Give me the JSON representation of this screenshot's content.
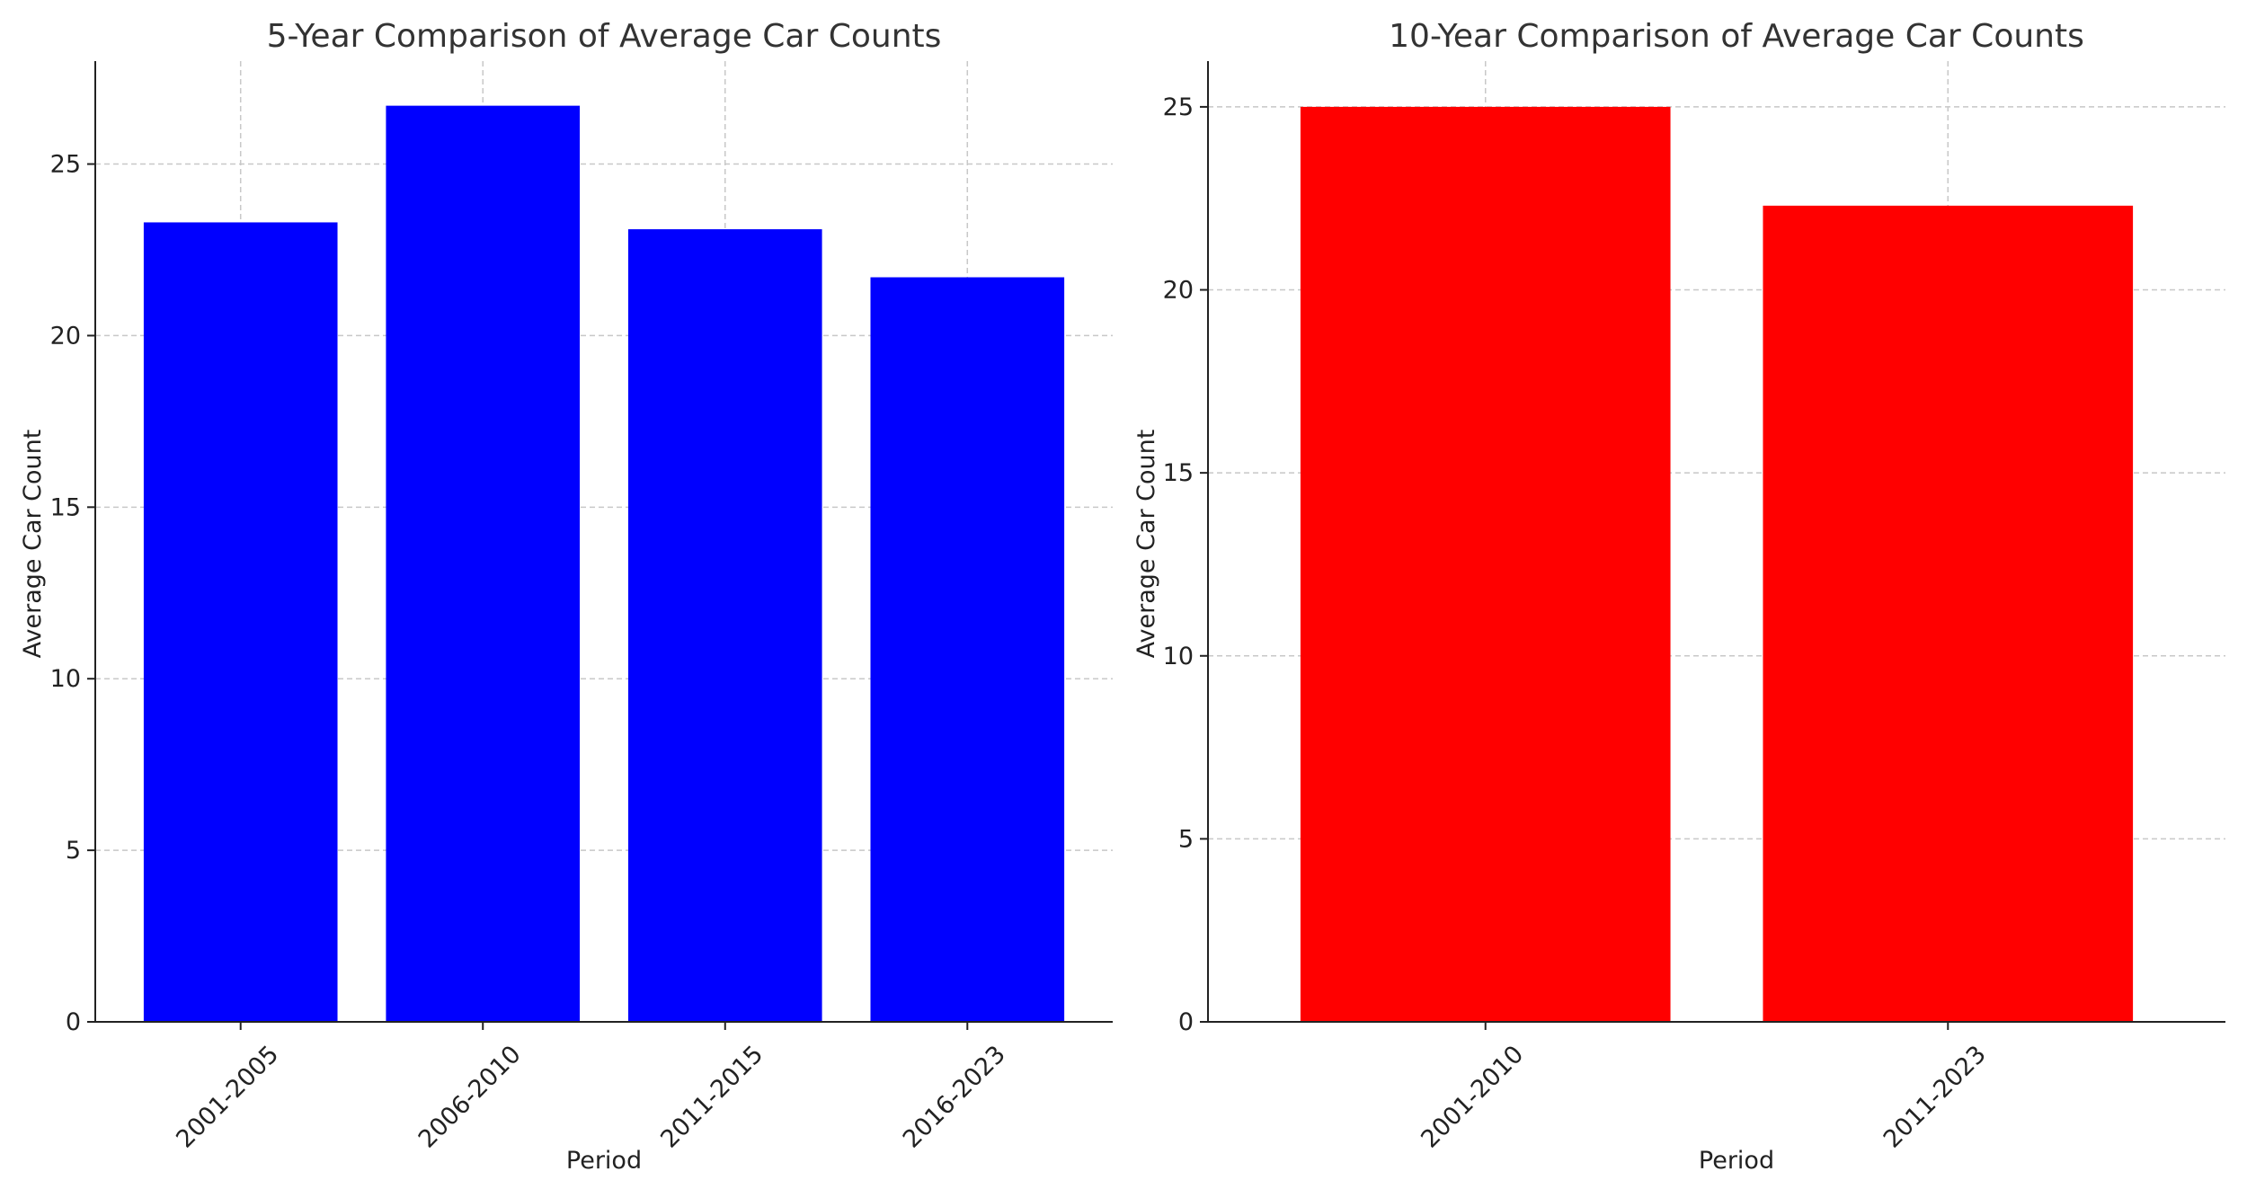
{
  "chart_data": [
    {
      "type": "bar",
      "title": "5-Year Comparison of Average Car Counts",
      "xlabel": "Period",
      "ylabel": "Average Car Count",
      "categories": [
        "2001-2005",
        "2006-2010",
        "2011-2015",
        "2016-2023"
      ],
      "values": [
        23.3,
        26.7,
        23.1,
        21.7
      ],
      "ylim": [
        0,
        28
      ],
      "yticks": [
        0,
        5,
        10,
        15,
        20,
        25
      ],
      "bar_color": "#0000ff",
      "grid": true,
      "x_tick_rotation_deg": 45
    },
    {
      "type": "bar",
      "title": "10-Year Comparison of Average Car Counts",
      "xlabel": "Period",
      "ylabel": "Average Car Count",
      "categories": [
        "2001-2010",
        "2011-2023"
      ],
      "values": [
        25.0,
        22.3
      ],
      "ylim": [
        0,
        26.25
      ],
      "yticks": [
        0,
        5,
        10,
        15,
        20,
        25
      ],
      "bar_color": "#ff0000",
      "grid": true,
      "x_tick_rotation_deg": 45
    }
  ]
}
